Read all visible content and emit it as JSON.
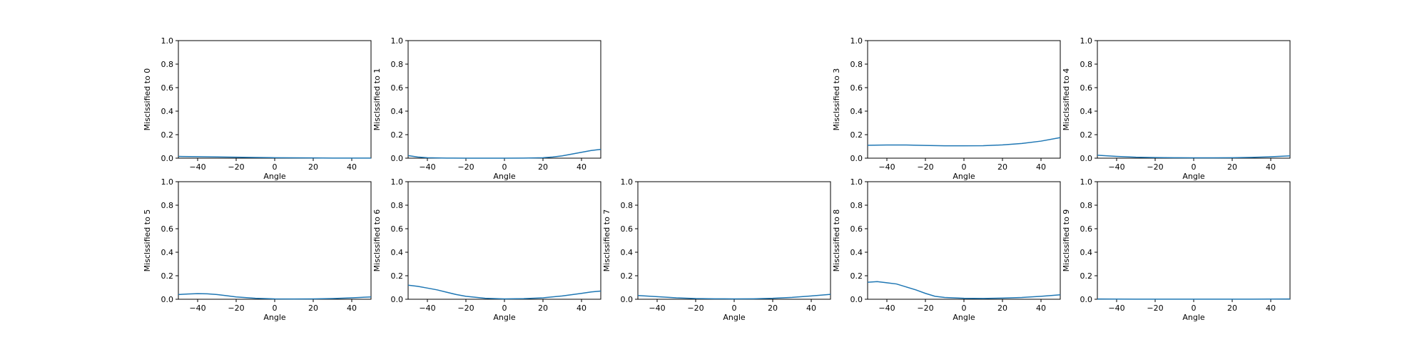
{
  "chart_data": [
    {
      "type": "line",
      "panel": 0,
      "ylabel": "Misclssified to 0",
      "xlabel": "Angle",
      "xlim": [
        -50,
        50
      ],
      "ylim": [
        0,
        1
      ],
      "xticks": [
        "−40",
        "−20",
        "0",
        "20",
        "40"
      ],
      "yticks": [
        "0.0",
        "0.2",
        "0.4",
        "0.6",
        "0.8",
        "1.0"
      ],
      "color": "#1f77b4",
      "x": [
        -50,
        -40,
        -30,
        -20,
        -10,
        0,
        10,
        20,
        30,
        40,
        50
      ],
      "y": [
        0.015,
        0.013,
        0.011,
        0.008,
        0.006,
        0.004,
        0.003,
        0.002,
        0.001,
        0.001,
        0.001
      ]
    },
    {
      "type": "line",
      "panel": 1,
      "ylabel": "Misclssified to 1",
      "xlabel": "Angle",
      "xlim": [
        -50,
        50
      ],
      "ylim": [
        0,
        1
      ],
      "xticks": [
        "−40",
        "−20",
        "0",
        "20",
        "40"
      ],
      "yticks": [
        "0.0",
        "0.2",
        "0.4",
        "0.6",
        "0.8",
        "1.0"
      ],
      "color": "#1f77b4",
      "x": [
        -50,
        -45,
        -40,
        -30,
        -20,
        -10,
        0,
        10,
        20,
        25,
        30,
        35,
        40,
        45,
        50
      ],
      "y": [
        0.022,
        0.01,
        0.004,
        0.001,
        0.0,
        0.0,
        0.0,
        0.001,
        0.004,
        0.01,
        0.02,
        0.035,
        0.05,
        0.065,
        0.075
      ]
    },
    null,
    {
      "type": "line",
      "panel": 3,
      "ylabel": "Misclssified to 3",
      "xlabel": "Angle",
      "xlim": [
        -50,
        50
      ],
      "ylim": [
        0,
        1
      ],
      "xticks": [
        "−40",
        "−20",
        "0",
        "20",
        "40"
      ],
      "yticks": [
        "0.0",
        "0.2",
        "0.4",
        "0.6",
        "0.8",
        "1.0"
      ],
      "color": "#1f77b4",
      "x": [
        -50,
        -40,
        -30,
        -20,
        -10,
        0,
        10,
        20,
        30,
        40,
        50
      ],
      "y": [
        0.11,
        0.112,
        0.112,
        0.108,
        0.105,
        0.105,
        0.106,
        0.113,
        0.125,
        0.145,
        0.175
      ]
    },
    {
      "type": "line",
      "panel": 4,
      "ylabel": "Misclssified to 4",
      "xlabel": "Angle",
      "xlim": [
        -50,
        50
      ],
      "ylim": [
        0,
        1
      ],
      "xticks": [
        "−40",
        "−20",
        "0",
        "20",
        "40"
      ],
      "yticks": [
        "0.0",
        "0.2",
        "0.4",
        "0.6",
        "0.8",
        "1.0"
      ],
      "color": "#1f77b4",
      "x": [
        -50,
        -40,
        -30,
        -20,
        -10,
        0,
        10,
        20,
        30,
        40,
        50
      ],
      "y": [
        0.025,
        0.015,
        0.008,
        0.005,
        0.004,
        0.003,
        0.003,
        0.004,
        0.007,
        0.012,
        0.02
      ]
    },
    {
      "type": "line",
      "panel": 5,
      "ylabel": "Misclssified to 5",
      "xlabel": "Angle",
      "xlim": [
        -50,
        50
      ],
      "ylim": [
        0,
        1
      ],
      "xticks": [
        "−40",
        "−20",
        "0",
        "20",
        "40"
      ],
      "yticks": [
        "0.0",
        "0.2",
        "0.4",
        "0.6",
        "0.8",
        "1.0"
      ],
      "color": "#1f77b4",
      "x": [
        -50,
        -45,
        -40,
        -35,
        -30,
        -25,
        -20,
        -10,
        0,
        10,
        20,
        30,
        40,
        50
      ],
      "y": [
        0.04,
        0.045,
        0.048,
        0.046,
        0.04,
        0.03,
        0.02,
        0.008,
        0.003,
        0.002,
        0.003,
        0.006,
        0.012,
        0.02
      ]
    },
    {
      "type": "line",
      "panel": 6,
      "ylabel": "Misclssified to 6",
      "xlabel": "Angle",
      "xlim": [
        -50,
        50
      ],
      "ylim": [
        0,
        1
      ],
      "xticks": [
        "−40",
        "−20",
        "0",
        "20",
        "40"
      ],
      "yticks": [
        "0.0",
        "0.2",
        "0.4",
        "0.6",
        "0.8",
        "1.0"
      ],
      "color": "#1f77b4",
      "x": [
        -50,
        -45,
        -40,
        -35,
        -30,
        -25,
        -20,
        -10,
        0,
        10,
        20,
        30,
        40,
        45,
        50
      ],
      "y": [
        0.12,
        0.11,
        0.095,
        0.08,
        0.06,
        0.04,
        0.025,
        0.008,
        0.003,
        0.005,
        0.012,
        0.028,
        0.05,
        0.062,
        0.07
      ]
    },
    {
      "type": "line",
      "panel": 7,
      "ylabel": "Misclssified to 7",
      "xlabel": "Angle",
      "xlim": [
        -50,
        50
      ],
      "ylim": [
        0,
        1
      ],
      "xticks": [
        "−40",
        "−20",
        "0",
        "20",
        "40"
      ],
      "yticks": [
        "0.0",
        "0.2",
        "0.4",
        "0.6",
        "0.8",
        "1.0"
      ],
      "color": "#1f77b4",
      "x": [
        -50,
        -40,
        -30,
        -20,
        -10,
        0,
        10,
        20,
        30,
        40,
        50
      ],
      "y": [
        0.032,
        0.022,
        0.012,
        0.006,
        0.004,
        0.003,
        0.004,
        0.008,
        0.016,
        0.028,
        0.042
      ]
    },
    {
      "type": "line",
      "panel": 8,
      "ylabel": "Misclssified to 8",
      "xlabel": "Angle",
      "xlim": [
        -50,
        50
      ],
      "ylim": [
        0,
        1
      ],
      "xticks": [
        "−40",
        "−20",
        "0",
        "20",
        "40"
      ],
      "yticks": [
        "0.0",
        "0.2",
        "0.4",
        "0.6",
        "0.8",
        "1.0"
      ],
      "color": "#1f77b4",
      "x": [
        -50,
        -45,
        -40,
        -35,
        -30,
        -25,
        -20,
        -15,
        -10,
        0,
        10,
        20,
        30,
        40,
        50
      ],
      "y": [
        0.145,
        0.15,
        0.14,
        0.13,
        0.105,
        0.08,
        0.05,
        0.025,
        0.015,
        0.008,
        0.007,
        0.01,
        0.015,
        0.025,
        0.038
      ]
    },
    {
      "type": "line",
      "panel": 9,
      "ylabel": "Misclssified to 9",
      "xlabel": "Angle",
      "xlim": [
        -50,
        50
      ],
      "ylim": [
        0,
        1
      ],
      "xticks": [
        "−40",
        "−20",
        "0",
        "20",
        "40"
      ],
      "yticks": [
        "0.0",
        "0.2",
        "0.4",
        "0.6",
        "0.8",
        "1.0"
      ],
      "color": "#1f77b4",
      "x": [
        -50,
        -30,
        -10,
        0,
        10,
        30,
        50
      ],
      "y": [
        0.002,
        0.001,
        0.001,
        0.001,
        0.001,
        0.001,
        0.002
      ]
    }
  ]
}
